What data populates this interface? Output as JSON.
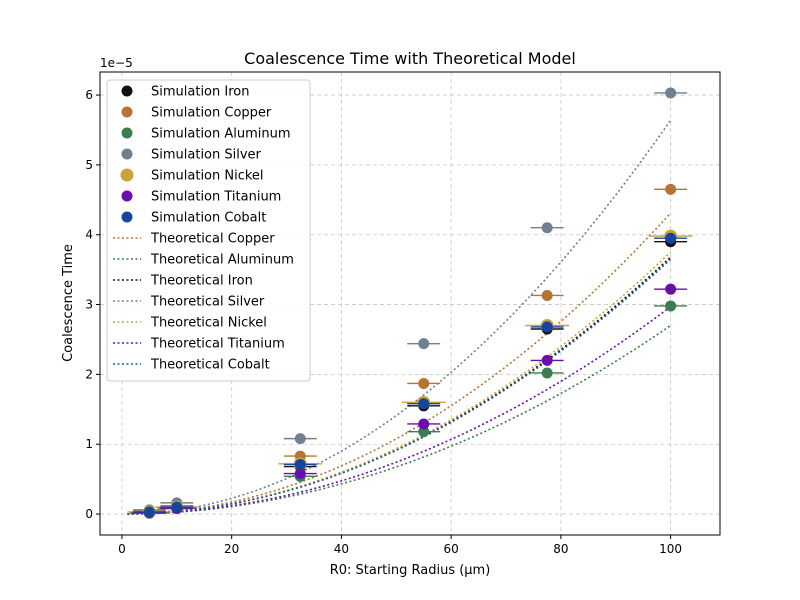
{
  "chart_data": {
    "type": "scatter",
    "title": "Coalescence Time with Theoretical Model",
    "xlabel": "R0: Starting Radius (μm)",
    "ylabel": "Coalescence Time",
    "y_offset_label": "1e−5",
    "y_scale_note": "y values in units of 1e-5",
    "xlim": [
      -4,
      109
    ],
    "ylim": [
      -0.3,
      6.33
    ],
    "xticks": [
      0,
      20,
      40,
      60,
      80,
      100
    ],
    "yticks": [
      0,
      1,
      2,
      3,
      4,
      5,
      6
    ],
    "grid": true,
    "legend_position": "top-left",
    "x": [
      5,
      10,
      32.5,
      55,
      77.5,
      100
    ],
    "series": [
      {
        "name": "Simulation Iron",
        "kind": "points",
        "color": "#111111",
        "values": [
          0.02,
          0.09,
          0.68,
          1.55,
          2.65,
          3.9
        ],
        "xerr": [
          3.5,
          3.5,
          3.0,
          3.0,
          3.0,
          3.0
        ]
      },
      {
        "name": "Simulation Copper",
        "kind": "points",
        "color": "#b87333",
        "values": [
          0.04,
          0.12,
          0.83,
          1.87,
          3.13,
          4.65
        ],
        "xerr": [
          3.0,
          3.0,
          3.0,
          3.0,
          3.0,
          3.0
        ]
      },
      {
        "name": "Simulation Aluminum",
        "kind": "points",
        "color": "#3a7d4e",
        "values": [
          0.01,
          0.08,
          0.54,
          1.18,
          2.02,
          2.98
        ],
        "xerr": [
          3.0,
          3.0,
          3.0,
          3.0,
          3.0,
          3.0
        ]
      },
      {
        "name": "Simulation Silver",
        "kind": "points",
        "color": "#708090",
        "values": [
          0.06,
          0.16,
          1.08,
          2.44,
          4.1,
          6.03
        ],
        "xerr": [
          3.0,
          3.0,
          3.0,
          3.0,
          3.0,
          3.0
        ]
      },
      {
        "name": "Simulation Nickel",
        "kind": "points",
        "color": "#c9a43b",
        "values": [
          0.03,
          0.1,
          0.72,
          1.6,
          2.7,
          3.98
        ],
        "xerr": [
          4.0,
          4.0,
          4.0,
          4.0,
          4.0,
          4.0
        ]
      },
      {
        "name": "Simulation Titanium",
        "kind": "points",
        "color": "#6a0dad",
        "values": [
          0.02,
          0.08,
          0.58,
          1.29,
          2.2,
          3.22
        ],
        "xerr": [
          3.0,
          3.0,
          3.0,
          3.0,
          3.0,
          3.0
        ]
      },
      {
        "name": "Simulation Cobalt",
        "kind": "points",
        "color": "#1446a0",
        "values": [
          0.03,
          0.1,
          0.71,
          1.58,
          2.68,
          3.95
        ],
        "xerr": [
          3.0,
          3.0,
          3.0,
          3.0,
          3.0,
          3.0
        ]
      },
      {
        "name": "Theoretical Copper",
        "kind": "curve",
        "color": "#b87333",
        "coefficient": 0.000431
      },
      {
        "name": "Theoretical Aluminum",
        "kind": "curve",
        "color": "#3a7d4e",
        "coefficient": 0.00027
      },
      {
        "name": "Theoretical Iron",
        "kind": "curve",
        "color": "#111111",
        "coefficient": 0.000368
      },
      {
        "name": "Theoretical Silver",
        "kind": "curve",
        "color": "#708090",
        "coefficient": 0.000564
      },
      {
        "name": "Theoretical Nickel",
        "kind": "curve",
        "color": "#c9a43b",
        "coefficient": 0.000375
      },
      {
        "name": "Theoretical Titanium",
        "kind": "curve",
        "color": "#6a0dad",
        "coefficient": 0.000297
      },
      {
        "name": "Theoretical Cobalt",
        "kind": "curve",
        "color": "#1f5a8a",
        "coefficient": 0.000365
      }
    ],
    "curve_x_range": [
      1,
      100
    ]
  }
}
